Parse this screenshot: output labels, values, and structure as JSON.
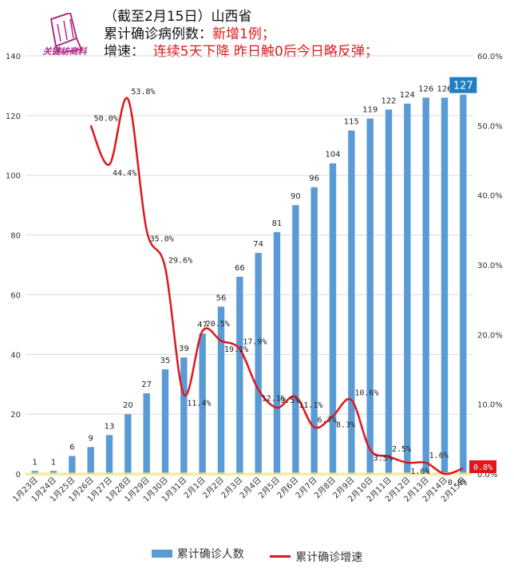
{
  "title": {
    "line1": "（截至2月15日）山西省",
    "line2_prefix": "累计确诊病例数：",
    "line2_highlight": "新增1例；",
    "line3_prefix": "增速：",
    "line3_highlight": "连续5天下降  昨日触0后今日略反弹；"
  },
  "logo": {
    "text": "关键纺商料"
  },
  "chart_data": {
    "type": "bar",
    "categories": [
      "1月23日",
      "1月24日",
      "1月25日",
      "1月26日",
      "1月27日",
      "1月28日",
      "1月29日",
      "1月30日",
      "1月31日",
      "2月1日",
      "2月2日",
      "2月3日",
      "2月4日",
      "2月5日",
      "2月6日",
      "2月7日",
      "2月8日",
      "2月9日",
      "2月10日",
      "2月11日",
      "2月12日",
      "2月13日",
      "2月14日",
      "2月15日"
    ],
    "series": [
      {
        "name": "累计确诊人数",
        "type": "bar",
        "axis": "left",
        "color": "#5b9bd5",
        "values": [
          1,
          1,
          6,
          9,
          13,
          20,
          27,
          35,
          39,
          47,
          56,
          66,
          74,
          81,
          90,
          96,
          104,
          115,
          119,
          122,
          124,
          126,
          126,
          127
        ],
        "labels": [
          "1",
          "1",
          "6",
          "9",
          "13",
          "20",
          "27",
          "35",
          "39",
          "47",
          "56",
          "66",
          "74",
          "81",
          "90",
          "96",
          "104",
          "115",
          "119",
          "122",
          "124",
          "126",
          "126",
          "127"
        ]
      },
      {
        "name": "累计确诊增速",
        "type": "line",
        "axis": "right",
        "color": "#e0161b",
        "values": [
          null,
          null,
          null,
          50.0,
          44.4,
          53.8,
          35.0,
          29.6,
          11.4,
          20.5,
          19.1,
          17.9,
          12.1,
          9.5,
          11.1,
          6.7,
          8.3,
          10.6,
          3.5,
          2.5,
          1.6,
          1.6,
          0.0,
          0.8
        ],
        "labels": [
          null,
          null,
          null,
          "50.0%",
          "44.4%",
          "53.8%",
          "35.0%",
          "29.6%",
          "11.4%",
          "20.5%",
          "19.1%",
          "17.9%",
          "12.1%",
          "9.5%",
          "11.1%",
          "6.7%",
          "8.3%",
          "10.6%",
          "3.5%",
          "2.5%",
          "1.6%",
          "1.6%",
          "0.0%",
          "0.8%"
        ]
      }
    ],
    "y_left": {
      "min": 0,
      "max": 140,
      "ticks": [
        "0",
        "20",
        "40",
        "60",
        "80",
        "100",
        "120",
        "140"
      ]
    },
    "y_right": {
      "min": 0,
      "max": 60,
      "ticks": [
        "0.0%",
        "10.0%",
        "20.0%",
        "30.0%",
        "40.0%",
        "50.0%",
        "60.0%"
      ]
    },
    "grid": true,
    "legend": "bottom",
    "highlight": {
      "last_bar_value": "127",
      "last_rate_value": "0.8%"
    }
  }
}
